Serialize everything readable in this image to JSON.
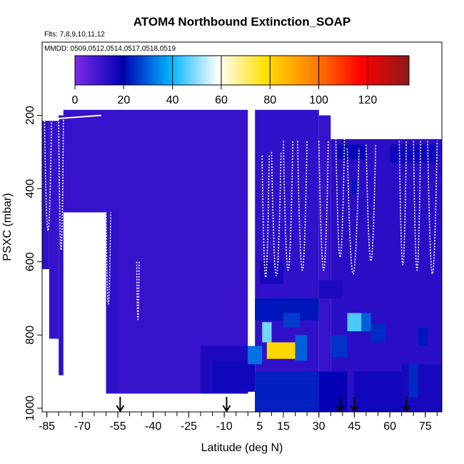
{
  "chart_data": {
    "type": "heatmap",
    "title": "ATOM4 Northbound Extinction_SOAP",
    "subtitle_flights": "Flts: 7,8,9,10,11,12",
    "subtitle_dates": "MMDD: 0509,0512,0514,0517,0518,0519",
    "xlabel": "Latitude (deg N)",
    "ylabel": "PSXC (mbar)",
    "xlim": [
      -87,
      82
    ],
    "ylim": [
      1010,
      0
    ],
    "x_ticks": [
      "-85",
      "-70",
      "-55",
      "-40",
      "-25",
      "-10",
      "5",
      "15",
      "30",
      "45",
      "60",
      "75"
    ],
    "x_tick_values": [
      -85,
      -70,
      -55,
      -40,
      -25,
      -10,
      5,
      15,
      30,
      45,
      60,
      75
    ],
    "y_ticks": [
      "200",
      "400",
      "600",
      "800",
      "1000"
    ],
    "y_tick_values": [
      200,
      400,
      600,
      800,
      1000
    ],
    "colorbar": {
      "range": [
        0,
        137
      ],
      "ticks": [
        "0",
        "20",
        "40",
        "60",
        "80",
        "100",
        "120"
      ],
      "tick_values": [
        0,
        20,
        40,
        60,
        80,
        100,
        120
      ],
      "colors": [
        "#7d2ae8",
        "#0000b4",
        "#00b4ff",
        "#ffffff",
        "#ffe000",
        "#ff8000",
        "#ff0000",
        "#8b1a1a"
      ]
    },
    "cells": [
      {
        "x": [
          -87,
          -84
        ],
        "p": [
          215,
          620
        ],
        "v": 12
      },
      {
        "x": [
          -84,
          -80
        ],
        "p": [
          215,
          810
        ],
        "v": 11
      },
      {
        "x": [
          -80,
          -78
        ],
        "p": [
          200,
          910
        ],
        "v": 12
      },
      {
        "x": [
          -78,
          -52
        ],
        "p": [
          185,
          465
        ],
        "v": 11
      },
      {
        "x": [
          -60,
          -55
        ],
        "p": [
          465,
          960
        ],
        "v": 12
      },
      {
        "x": [
          -55,
          0
        ],
        "p": [
          185,
          960
        ],
        "v": 11
      },
      {
        "x": [
          -20,
          0
        ],
        "p": [
          830,
          960
        ],
        "v": 15
      },
      {
        "x": [
          -15,
          3
        ],
        "p": [
          870,
          955
        ],
        "v": 17
      },
      {
        "x": [
          3,
          30
        ],
        "p": [
          185,
          1010
        ],
        "v": 12
      },
      {
        "x": [
          30,
          35
        ],
        "p": [
          200,
          1010
        ],
        "v": 11
      },
      {
        "x": [
          35,
          82
        ],
        "p": [
          265,
          1010
        ],
        "v": 13
      },
      {
        "x": [
          38,
          50
        ],
        "p": [
          280,
          320
        ],
        "v": 19
      },
      {
        "x": [
          60,
          80
        ],
        "p": [
          280,
          330
        ],
        "v": 17
      },
      {
        "x": [
          3,
          30
        ],
        "p": [
          700,
          760
        ],
        "v": 22
      },
      {
        "x": [
          3,
          30
        ],
        "p": [
          900,
          1010
        ],
        "v": 23
      },
      {
        "x": [
          30,
          42
        ],
        "p": [
          900,
          1010
        ],
        "v": 19
      },
      {
        "x": [
          45,
          65
        ],
        "p": [
          900,
          1010
        ],
        "v": 17
      },
      {
        "x": [
          65,
          82
        ],
        "p": [
          880,
          1010
        ],
        "v": 16
      },
      {
        "x": [
          6,
          10
        ],
        "p": [
          765,
          820
        ],
        "v": 48
      },
      {
        "x": [
          8,
          20
        ],
        "p": [
          820,
          865
        ],
        "v": 80
      },
      {
        "x": [
          42,
          48
        ],
        "p": [
          740,
          790
        ],
        "v": 45
      },
      {
        "x": [
          48,
          52
        ],
        "p": [
          740,
          790
        ],
        "v": 30
      },
      {
        "x": [
          20,
          25
        ],
        "p": [
          800,
          870
        ],
        "v": 30
      },
      {
        "x": [
          0,
          6
        ],
        "p": [
          830,
          880
        ],
        "v": 32
      },
      {
        "x": [
          35,
          42
        ],
        "p": [
          800,
          860
        ],
        "v": 25
      },
      {
        "x": [
          52,
          58
        ],
        "p": [
          770,
          820
        ],
        "v": 24
      },
      {
        "x": [
          68,
          72
        ],
        "p": [
          880,
          970
        ],
        "v": 24
      },
      {
        "x": [
          15,
          22
        ],
        "p": [
          740,
          780
        ],
        "v": 26
      },
      {
        "x": [
          44,
          46
        ],
        "p": [
          375,
          415
        ],
        "v": 22
      },
      {
        "x": [
          72,
          76
        ],
        "p": [
          780,
          830
        ],
        "v": 22
      },
      {
        "x": [
          5,
          15
        ],
        "p": [
          600,
          660
        ],
        "v": 16
      },
      {
        "x": [
          30,
          40
        ],
        "p": [
          650,
          700
        ],
        "v": 15
      }
    ],
    "arrows_at_latitude": [
      -54,
      -9,
      39,
      45,
      67
    ]
  }
}
